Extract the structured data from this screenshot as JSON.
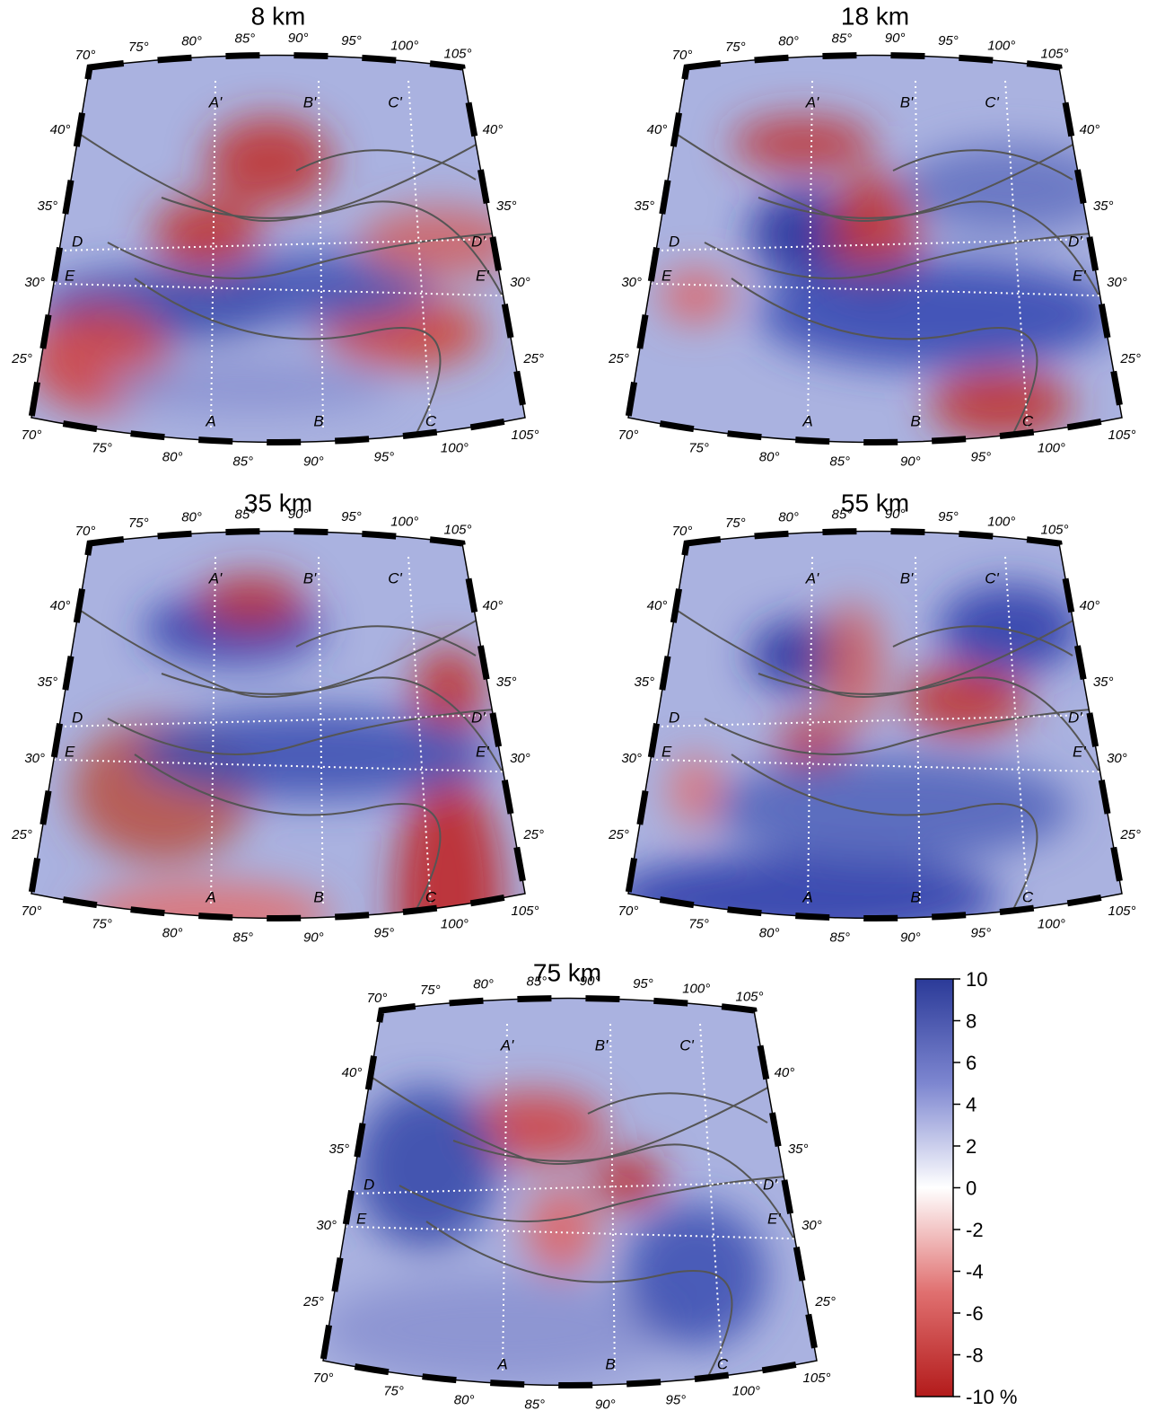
{
  "panels": [
    {
      "title": "8 km"
    },
    {
      "title": "18 km"
    },
    {
      "title": "35 km"
    },
    {
      "title": "55 km"
    },
    {
      "title": "75 km"
    }
  ],
  "lon_labels": [
    "70°",
    "75°",
    "80°",
    "85°",
    "90°",
    "95°",
    "100°",
    "105°"
  ],
  "lat_labels": [
    "40°",
    "35°",
    "30°",
    "25°"
  ],
  "profiles": {
    "top": [
      "A'",
      "B'",
      "C'"
    ],
    "bottom": [
      "A",
      "B",
      "C"
    ],
    "left": [
      "D",
      "E"
    ],
    "right": [
      "D'",
      "E'"
    ]
  },
  "colorbar": {
    "ylim": [
      -10,
      10
    ],
    "ticks": [
      10,
      8,
      6,
      4,
      2,
      0,
      -2,
      -4,
      -6,
      -8,
      {
        "value": -10,
        "label": "-10 %"
      }
    ]
  }
}
